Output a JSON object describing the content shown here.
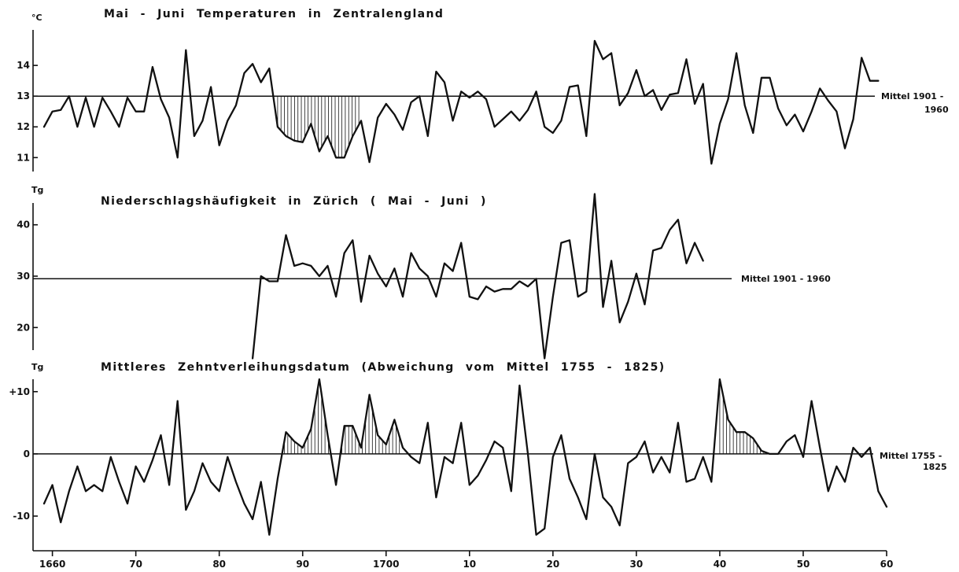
{
  "chart_data": [
    {
      "id": "temp",
      "type": "line",
      "title": "Mai - Juni   Temperaturen  in  Zentralengland",
      "unit": "°C",
      "yticks": [
        11,
        12,
        13,
        14
      ],
      "ylim": [
        10.7,
        14.9
      ],
      "mean": {
        "value": 13,
        "label_lines": [
          "Mittel  1901 -",
          "1960"
        ]
      },
      "hatch_below_mean": [
        1687,
        1697
      ],
      "x_start": 1659,
      "values": [
        12.0,
        12.5,
        12.55,
        13.0,
        12.0,
        12.95,
        12.0,
        12.95,
        12.5,
        12.0,
        12.95,
        12.5,
        12.5,
        13.95,
        12.9,
        12.3,
        11.0,
        14.5,
        11.7,
        12.2,
        13.3,
        11.4,
        12.2,
        12.7,
        13.75,
        14.05,
        13.45,
        13.9,
        12.0,
        11.7,
        11.55,
        11.5,
        12.1,
        11.2,
        11.7,
        11.0,
        11.0,
        11.7,
        12.2,
        10.85,
        12.3,
        12.75,
        12.4,
        11.9,
        12.8,
        13.0,
        11.7,
        13.8,
        13.45,
        12.2,
        13.15,
        12.95,
        13.15,
        12.9,
        12.0,
        12.25,
        12.5,
        12.2,
        12.55,
        13.15,
        12.0,
        11.8,
        12.2,
        13.3,
        13.35,
        11.7,
        14.8,
        14.2,
        14.4,
        12.7,
        13.1,
        13.85,
        13.0,
        13.2,
        12.55,
        13.05,
        13.1,
        14.2,
        12.75,
        13.4,
        10.8,
        12.1,
        12.9,
        14.4,
        12.7,
        11.8,
        13.6,
        13.6,
        12.6,
        12.05,
        12.4,
        11.85,
        12.5,
        13.25,
        12.85,
        12.5,
        11.3,
        12.25,
        14.25,
        13.5,
        13.5
      ]
    },
    {
      "id": "precip",
      "type": "line",
      "title": "Niederschlagshäufigkeit  in  Zürich  ( Mai - Juni )",
      "unit": "Tg",
      "yticks": [
        20,
        30,
        40
      ],
      "ylim": [
        13,
        47
      ],
      "mean": {
        "value": 29.5,
        "label_lines": [
          "Mittel  1901 - 1960"
        ]
      },
      "x_start": 1684,
      "values": [
        14,
        30,
        29,
        29,
        38,
        32,
        32.5,
        32,
        30,
        32,
        26,
        34.5,
        37,
        25,
        34,
        30.5,
        28,
        31.5,
        26,
        34.5,
        31.5,
        30,
        26,
        32.5,
        31,
        36.5,
        26,
        25.5,
        28,
        27,
        27.5,
        27.5,
        29,
        28,
        29.5,
        14,
        26,
        36.5,
        37,
        26,
        27,
        46,
        24,
        33,
        21,
        25,
        30.5,
        24.5,
        35,
        35.5,
        39,
        41,
        32.5,
        36.5,
        33
      ]
    },
    {
      "id": "tithe",
      "type": "line",
      "title": "Mittleres  Zehntverleihungsdatum  (Abweichung  vom  Mittel  1755 - 1825)",
      "unit": "Tg",
      "yticks": [
        10,
        0,
        -10
      ],
      "ytick_labels": [
        "+10",
        "0",
        "-10"
      ],
      "ylim": [
        -13.8,
        12.5
      ],
      "mean": {
        "value": 0,
        "label_lines": [
          "Mittel  1755 -",
          "1825"
        ]
      },
      "hatch_above_mean": [
        [
          1687,
          1702
        ],
        [
          1740,
          1746
        ]
      ],
      "x_start": 1659,
      "values": [
        -8,
        -5,
        -11,
        -6,
        -2,
        -6,
        -5,
        -6,
        -0.5,
        -4.5,
        -8,
        -2,
        -4.5,
        -1,
        3,
        -5,
        8.5,
        -9,
        -6,
        -1.5,
        -4.5,
        -6,
        -0.5,
        -4.5,
        -8,
        -10.5,
        -4.5,
        -13,
        -4,
        3.5,
        2,
        1,
        4,
        12,
        3,
        -5,
        4.5,
        4.5,
        1,
        9.5,
        3,
        1.5,
        5.5,
        1,
        -0.5,
        -1.5,
        5,
        -7,
        -0.5,
        -1.5,
        5,
        -5,
        -3.5,
        -1,
        2,
        1,
        -6,
        11,
        0,
        -13,
        -12,
        -0.5,
        3,
        -4,
        -7,
        -10.5,
        0,
        -7,
        -8.5,
        -11.5,
        -1.5,
        -0.5,
        2,
        -3,
        -0.5,
        -3,
        5,
        -4.5,
        -4,
        -0.5,
        -4.5,
        12,
        5.5,
        3.5,
        3.5,
        2.5,
        0.5,
        0,
        0,
        2,
        3,
        -0.5,
        8.5,
        1,
        -6,
        -2,
        -4.5,
        1,
        -0.5,
        1,
        -6,
        -8.5
      ]
    }
  ],
  "x_axis": {
    "range": [
      1659,
      1760
    ],
    "ticks": [
      1660,
      1670,
      1680,
      1690,
      1700,
      1710,
      1720,
      1730,
      1740,
      1750,
      1760
    ],
    "tick_labels": [
      "1660",
      "70",
      "80",
      "90",
      "1700",
      "10",
      "20",
      "30",
      "40",
      "50",
      "60"
    ]
  }
}
